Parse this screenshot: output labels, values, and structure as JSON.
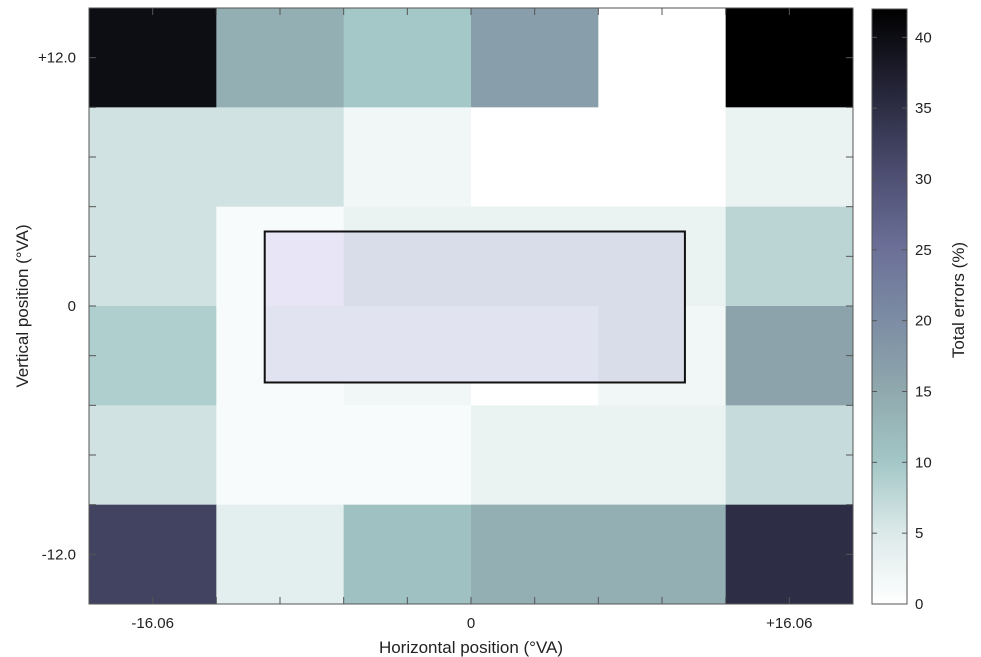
{
  "chart_data": {
    "type": "heatmap",
    "xlabel": "Horizontal position (°VA)",
    "ylabel": "Vertical position (°VA)",
    "colorbar_label": "Total errors (%)",
    "x_ticks": [
      "-16.06",
      "0",
      "+16.06"
    ],
    "y_ticks": [
      "+12.0",
      "0",
      "-12.0"
    ],
    "colorbar_ticks": [
      "0",
      "5",
      "10",
      "15",
      "20",
      "25",
      "30",
      "35",
      "40"
    ],
    "color_range": [
      0,
      42
    ],
    "grid_columns": 6,
    "grid_rows": 6,
    "values": [
      [
        40,
        14,
        10,
        17,
        0,
        42
      ],
      [
        6,
        6,
        2,
        0,
        0,
        3
      ],
      [
        6,
        1,
        3,
        3,
        3,
        8
      ],
      [
        9,
        1,
        2,
        0,
        2,
        16
      ],
      [
        6,
        1,
        1,
        3,
        3,
        7
      ],
      [
        32,
        4,
        11,
        14,
        14,
        35
      ]
    ],
    "overlay_values": [
      [
        null,
        null,
        null,
        null,
        null,
        null
      ],
      [
        null,
        null,
        null,
        null,
        null,
        null
      ],
      [
        null,
        20,
        23,
        23,
        23,
        null
      ],
      [
        null,
        21,
        21,
        21,
        23,
        null
      ],
      [
        null,
        null,
        null,
        null,
        null,
        null
      ],
      [
        null,
        null,
        null,
        null,
        null,
        null
      ]
    ],
    "highlight_box": true,
    "grid": false
  }
}
